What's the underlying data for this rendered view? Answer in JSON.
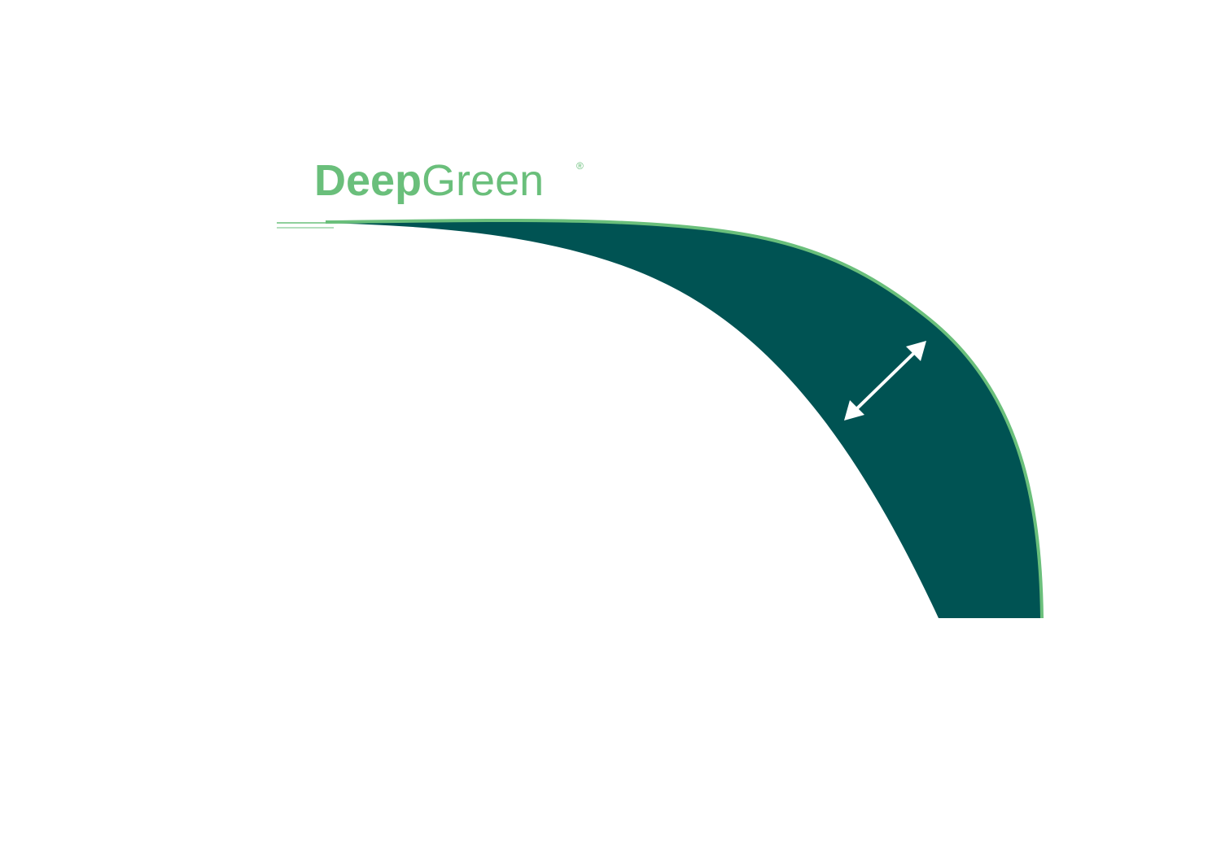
{
  "logo": {
    "part1": "Deep",
    "part2": "Green",
    "registered_mark": "®"
  },
  "colors": {
    "background": "#ffffff",
    "band_fill": "#005353",
    "accent_green": "#6abf7b",
    "arrow": "#ffffff"
  },
  "icons": {
    "thickness_arrow": "double-headed-arrow-icon"
  }
}
